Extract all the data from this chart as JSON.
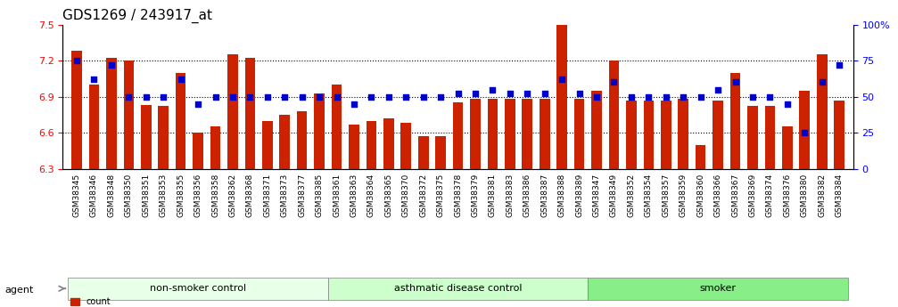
{
  "title": "GDS1269 / 243917_at",
  "samples": [
    "GSM38345",
    "GSM38346",
    "GSM38348",
    "GSM38350",
    "GSM38351",
    "GSM38353",
    "GSM38355",
    "GSM38356",
    "GSM38358",
    "GSM38362",
    "GSM38368",
    "GSM38371",
    "GSM38373",
    "GSM38377",
    "GSM38385",
    "GSM38361",
    "GSM38363",
    "GSM38364",
    "GSM38365",
    "GSM38370",
    "GSM38372",
    "GSM38375",
    "GSM38378",
    "GSM38379",
    "GSM38381",
    "GSM38383",
    "GSM38386",
    "GSM38387",
    "GSM38388",
    "GSM38389",
    "GSM38347",
    "GSM38349",
    "GSM38352",
    "GSM38354",
    "GSM38357",
    "GSM38359",
    "GSM38360",
    "GSM38366",
    "GSM38367",
    "GSM38369",
    "GSM38374",
    "GSM38376",
    "GSM38380",
    "GSM38382",
    "GSM38384"
  ],
  "bar_values": [
    7.28,
    7.0,
    7.22,
    7.2,
    6.83,
    6.82,
    7.1,
    6.6,
    6.65,
    7.25,
    7.22,
    6.7,
    6.75,
    6.78,
    6.93,
    7.0,
    6.67,
    6.7,
    6.72,
    6.68,
    6.57,
    6.57,
    6.85,
    6.88,
    6.88,
    6.88,
    6.88,
    6.88,
    7.55,
    6.88,
    6.95,
    7.2,
    6.87,
    6.87,
    6.87,
    6.88,
    6.5,
    6.87,
    7.1,
    6.82,
    6.82,
    6.65,
    6.95,
    7.25,
    6.87
  ],
  "percentile_values": [
    75,
    62,
    72,
    50,
    50,
    50,
    62,
    45,
    50,
    50,
    50,
    50,
    50,
    50,
    50,
    50,
    45,
    50,
    50,
    50,
    50,
    50,
    52,
    52,
    55,
    52,
    52,
    52,
    62,
    52,
    50,
    60,
    50,
    50,
    50,
    50,
    50,
    55,
    60,
    50,
    50,
    45,
    25,
    60,
    72
  ],
  "groups": [
    {
      "label": "non-smoker control",
      "start": 0,
      "end": 15,
      "color": "#ccffcc"
    },
    {
      "label": "asthmatic disease control",
      "start": 15,
      "end": 30,
      "color": "#99ff99"
    },
    {
      "label": "smoker",
      "start": 30,
      "end": 45,
      "color": "#66ee66"
    }
  ],
  "ylim_left": [
    6.3,
    7.5
  ],
  "ylim_right": [
    0,
    100
  ],
  "yticks_left": [
    6.3,
    6.6,
    6.9,
    7.2,
    7.5
  ],
  "yticks_right": [
    0,
    25,
    50,
    75,
    100
  ],
  "bar_color": "#cc2200",
  "dot_color": "#0000cc",
  "bar_bottom": 6.3,
  "right_axis_label": "%"
}
